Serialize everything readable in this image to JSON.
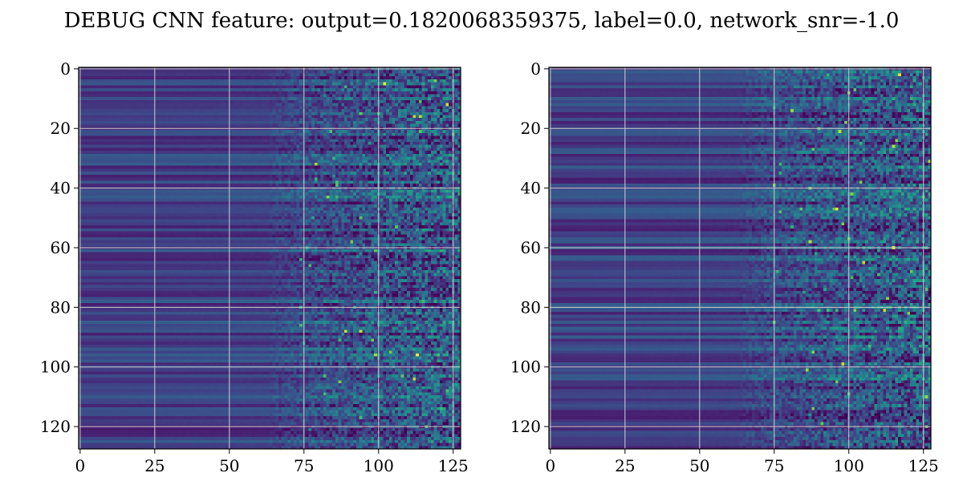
{
  "title": "DEBUG CNN feature: output=0.1820068359375, label=0.0, network_snr=-1.0",
  "chart_data": [
    {
      "type": "heatmap",
      "colormap": "viridis",
      "rows": 128,
      "cols": 128,
      "xlim": [
        0,
        127
      ],
      "ylim": [
        127,
        0
      ],
      "xticks": [
        0,
        25,
        50,
        75,
        100,
        125
      ],
      "yticks": [
        0,
        20,
        40,
        60,
        80,
        100,
        120
      ],
      "grid": true
    },
    {
      "type": "heatmap",
      "colormap": "viridis",
      "rows": 128,
      "cols": 128,
      "xlim": [
        0,
        127
      ],
      "ylim": [
        127,
        0
      ],
      "xticks": [
        0,
        25,
        50,
        75,
        100,
        125
      ],
      "yticks": [
        0,
        20,
        40,
        60,
        80,
        100,
        120
      ],
      "grid": true
    }
  ]
}
